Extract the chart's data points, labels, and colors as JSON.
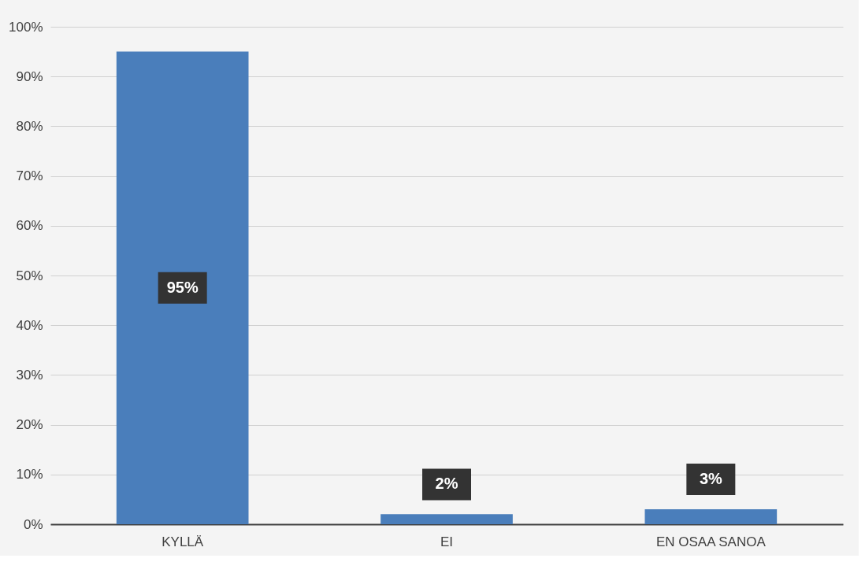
{
  "chart_data": {
    "type": "bar",
    "categories": [
      "KYLLÄ",
      "EI",
      "EN OSAA SANOA"
    ],
    "values": [
      95,
      2,
      3
    ],
    "color": "#4a7ebb",
    "value_labels": [
      "95%",
      "2%",
      "3%"
    ],
    "ylim": [
      0,
      100
    ],
    "yticks": [
      {
        "value": 0,
        "label": "0%"
      },
      {
        "value": 10,
        "label": "10%"
      },
      {
        "value": 20,
        "label": "20%"
      },
      {
        "value": 30,
        "label": "30%"
      },
      {
        "value": 40,
        "label": "40%"
      },
      {
        "value": 50,
        "label": "50%"
      },
      {
        "value": 60,
        "label": "60%"
      },
      {
        "value": 70,
        "label": "70%"
      },
      {
        "value": 80,
        "label": "80%"
      },
      {
        "value": 90,
        "label": "90%"
      },
      {
        "value": 100,
        "label": "100%"
      }
    ],
    "grid": "y"
  }
}
